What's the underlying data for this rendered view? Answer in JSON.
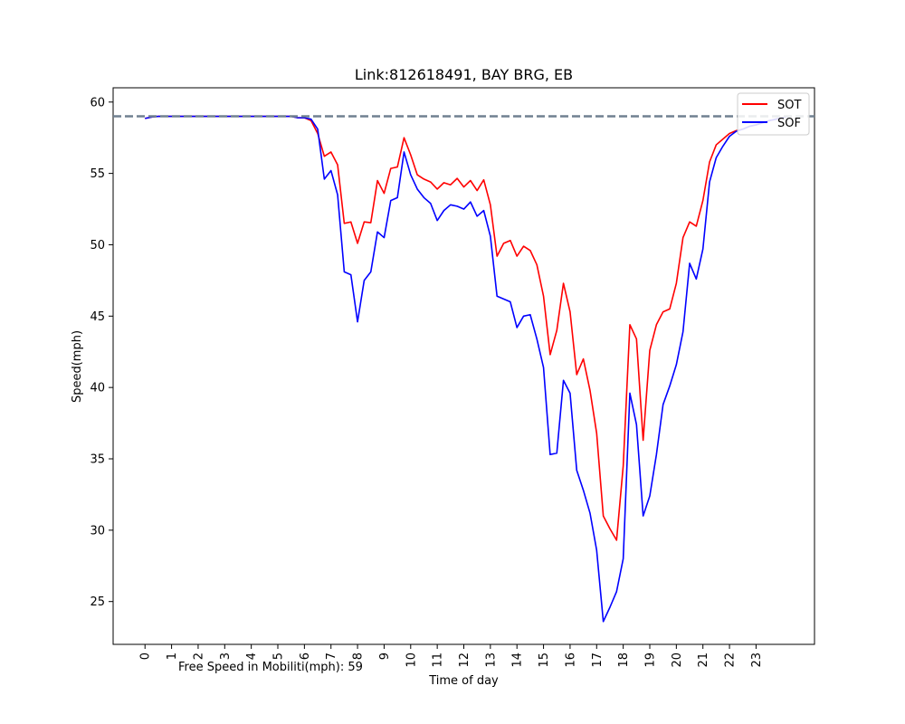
{
  "chart_data": {
    "type": "line",
    "title": "Link:812618491, BAY BRG, EB",
    "xlabel": "Time of day",
    "ylabel": "Speed(mph)",
    "annotation": "Free Speed in Mobiliti(mph): 59",
    "xlim": [
      -1.2,
      25.2
    ],
    "ylim": [
      22,
      61
    ],
    "x_ticks": [
      "0",
      "1",
      "2",
      "3",
      "4",
      "5",
      "6",
      "7",
      "8",
      "9",
      "10",
      "11",
      "12",
      "13",
      "14",
      "15",
      "16",
      "17",
      "18",
      "19",
      "20",
      "21",
      "22",
      "23"
    ],
    "y_ticks": [
      "25",
      "30",
      "35",
      "40",
      "45",
      "50",
      "55",
      "60"
    ],
    "reference_line": {
      "value": 59,
      "color": "#708090"
    },
    "legend_position": "top-right",
    "x": [
      0,
      0.25,
      0.5,
      0.75,
      1,
      1.25,
      1.5,
      1.75,
      2,
      2.25,
      2.5,
      2.75,
      3,
      3.25,
      3.5,
      3.75,
      4,
      4.25,
      4.5,
      4.75,
      5,
      5.25,
      5.5,
      5.75,
      6,
      6.25,
      6.5,
      6.75,
      7,
      7.25,
      7.5,
      7.75,
      8,
      8.25,
      8.5,
      8.75,
      9,
      9.25,
      9.5,
      9.75,
      10,
      10.25,
      10.5,
      10.75,
      11,
      11.25,
      11.5,
      11.75,
      12,
      12.25,
      12.5,
      12.75,
      13,
      13.25,
      13.5,
      13.75,
      14,
      14.25,
      14.5,
      14.75,
      15,
      15.25,
      15.5,
      15.75,
      16,
      16.25,
      16.5,
      16.75,
      17,
      17.25,
      17.5,
      17.75,
      18,
      18.25,
      18.5,
      18.75,
      19,
      19.25,
      19.5,
      19.75,
      20,
      20.25,
      20.5,
      20.75,
      21,
      21.25,
      21.5,
      21.75,
      22,
      22.25,
      22.5,
      22.75,
      23,
      23.25,
      23.5,
      23.75,
      24,
      24.25
    ],
    "series": [
      {
        "name": "SOT",
        "color": "#ff0000",
        "values": [
          58.85,
          58.95,
          59,
          59,
          59,
          59,
          59,
          59,
          59,
          59,
          59,
          59,
          59,
          59,
          59,
          59,
          59,
          59,
          59,
          59,
          59,
          59,
          59,
          58.9,
          58.9,
          58.7,
          57.8,
          56.2,
          56.5,
          55.6,
          51.5,
          51.6,
          50.1,
          51.6,
          51.55,
          54.5,
          53.6,
          55.35,
          55.45,
          57.5,
          56.3,
          54.9,
          54.6,
          54.4,
          53.9,
          54.35,
          54.2,
          54.65,
          54.05,
          54.5,
          53.8,
          54.55,
          52.8,
          49.2,
          50.1,
          50.3,
          49.2,
          49.9,
          49.6,
          48.6,
          46.4,
          42.3,
          44.0,
          47.3,
          45.3,
          40.9,
          42.0,
          39.8,
          36.8,
          31.0,
          30.1,
          29.3,
          34.5,
          44.4,
          43.4,
          36.3,
          42.6,
          44.4,
          45.3,
          45.5,
          47.3,
          50.5,
          51.6,
          51.3,
          53.1,
          55.8,
          57.0,
          57.4,
          57.8,
          58.0,
          58.1,
          58.3,
          58.4,
          58.55,
          58.7,
          58.8,
          58.9,
          59.0
        ]
      },
      {
        "name": "SOF",
        "color": "#0000ff",
        "values": [
          58.85,
          58.95,
          59,
          59,
          59,
          59,
          59,
          59,
          59,
          59,
          59,
          59,
          59,
          59,
          59,
          59,
          59,
          59,
          59,
          59,
          59,
          59,
          59,
          58.9,
          58.9,
          58.8,
          58.1,
          54.6,
          55.2,
          53.5,
          48.1,
          47.9,
          44.6,
          47.5,
          48.1,
          50.9,
          50.5,
          53.1,
          53.3,
          56.5,
          54.9,
          53.9,
          53.3,
          52.9,
          51.7,
          52.4,
          52.8,
          52.7,
          52.5,
          53.0,
          52.0,
          52.4,
          50.6,
          46.4,
          46.2,
          46.0,
          44.2,
          45.0,
          45.1,
          43.4,
          41.4,
          35.3,
          35.4,
          40.5,
          39.6,
          34.2,
          32.8,
          31.2,
          28.6,
          23.6,
          24.6,
          25.7,
          28.0,
          39.6,
          37.4,
          31.0,
          32.4,
          35.3,
          38.8,
          40.1,
          41.6,
          43.9,
          48.7,
          47.6,
          49.7,
          54.4,
          56.1,
          56.9,
          57.6,
          57.95,
          58.1,
          58.3,
          58.4,
          58.55,
          58.7,
          58.8,
          58.9,
          59.0
        ]
      }
    ]
  }
}
